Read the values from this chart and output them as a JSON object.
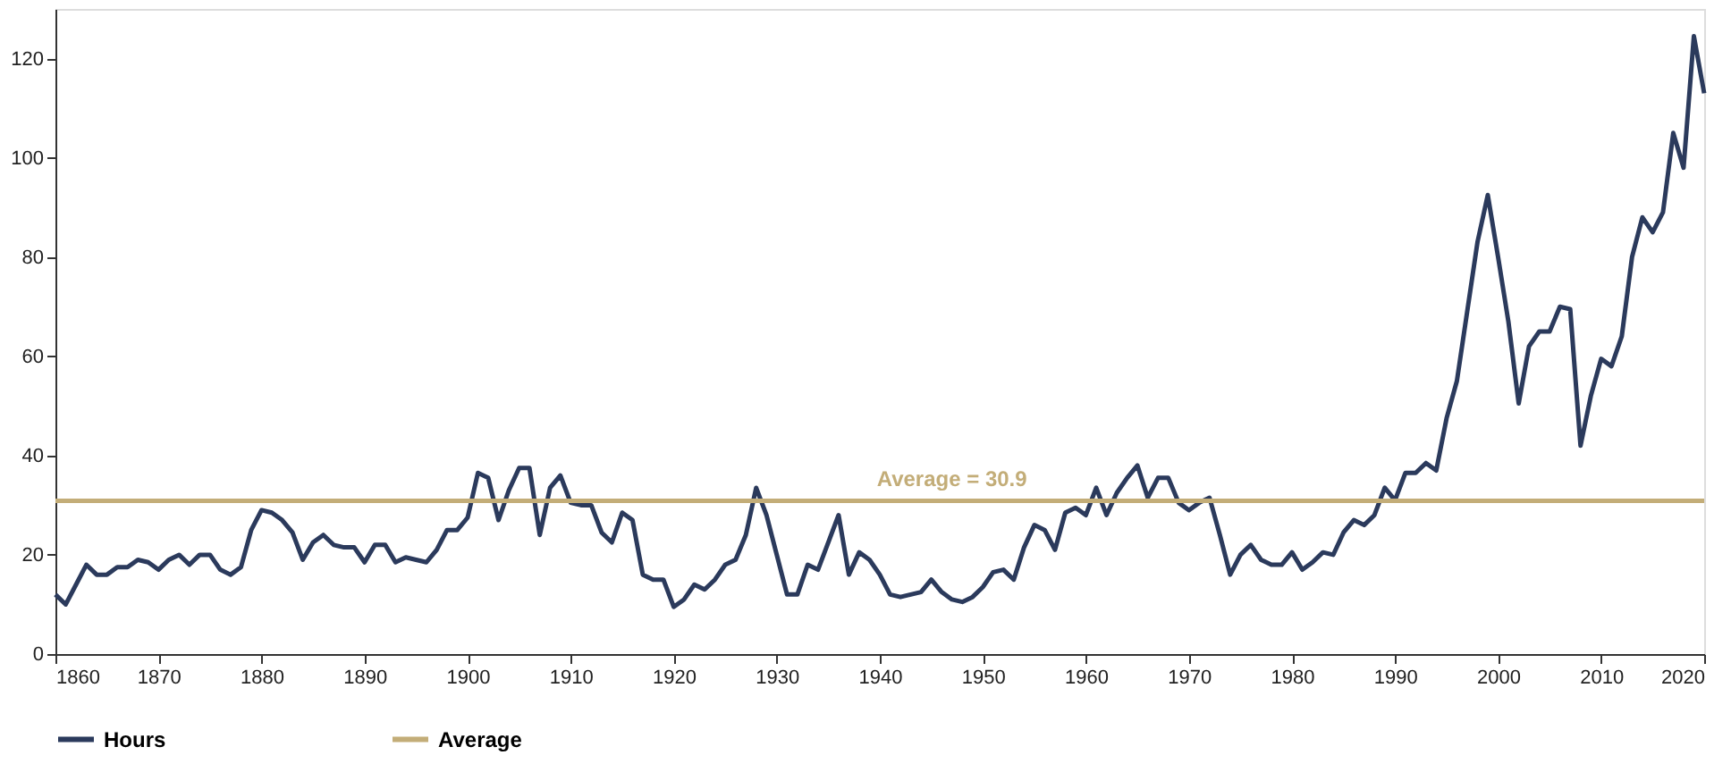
{
  "chart_data": {
    "type": "line",
    "xlim": [
      1860,
      2020
    ],
    "xticks": [
      1860,
      1870,
      1880,
      1890,
      1900,
      1910,
      1920,
      1930,
      1940,
      1950,
      1960,
      1970,
      1980,
      1990,
      2000,
      2010,
      2020
    ],
    "ylim": [
      0,
      130
    ],
    "yticks": [
      0,
      20,
      40,
      60,
      80,
      100,
      120
    ],
    "grid": false,
    "legend": "bottom",
    "line_style": "solid",
    "marker": "none",
    "x": [
      1860,
      1861,
      1862,
      1863,
      1864,
      1865,
      1866,
      1867,
      1868,
      1869,
      1870,
      1871,
      1872,
      1873,
      1874,
      1875,
      1876,
      1877,
      1878,
      1879,
      1880,
      1881,
      1882,
      1883,
      1884,
      1885,
      1886,
      1887,
      1888,
      1889,
      1890,
      1891,
      1892,
      1893,
      1894,
      1895,
      1896,
      1897,
      1898,
      1899,
      1900,
      1901,
      1902,
      1903,
      1904,
      1905,
      1906,
      1907,
      1908,
      1909,
      1910,
      1911,
      1912,
      1913,
      1914,
      1915,
      1916,
      1917,
      1918,
      1919,
      1920,
      1921,
      1922,
      1923,
      1924,
      1925,
      1926,
      1927,
      1928,
      1929,
      1930,
      1931,
      1932,
      1933,
      1934,
      1935,
      1936,
      1937,
      1938,
      1939,
      1940,
      1941,
      1942,
      1943,
      1944,
      1945,
      1946,
      1947,
      1948,
      1949,
      1950,
      1951,
      1952,
      1953,
      1954,
      1955,
      1956,
      1957,
      1958,
      1959,
      1960,
      1961,
      1962,
      1963,
      1964,
      1965,
      1966,
      1967,
      1968,
      1969,
      1970,
      1971,
      1972,
      1973,
      1974,
      1975,
      1976,
      1977,
      1978,
      1979,
      1980,
      1981,
      1982,
      1983,
      1984,
      1985,
      1986,
      1987,
      1988,
      1989,
      1990,
      1991,
      1992,
      1993,
      1994,
      1995,
      1996,
      1997,
      1998,
      1999,
      2000,
      2001,
      2002,
      2003,
      2004,
      2005,
      2006,
      2007,
      2008,
      2009,
      2010,
      2011,
      2012,
      2013,
      2014,
      2015,
      2016,
      2017,
      2018,
      2019,
      2020
    ],
    "series": [
      {
        "name": "Hours",
        "color": "#2b3a5c",
        "values": [
          12,
          10,
          14,
          18,
          16,
          16,
          17.5,
          17.5,
          19,
          18.5,
          17,
          19,
          20,
          18,
          20,
          20,
          17,
          16,
          17.5,
          25,
          29,
          28.5,
          27,
          24.5,
          19,
          22.5,
          24,
          22,
          21.5,
          21.5,
          18.5,
          22,
          22,
          18.5,
          19.5,
          19,
          18.5,
          21,
          25,
          25,
          27.5,
          36.5,
          35.5,
          27,
          33,
          37.5,
          37.5,
          24,
          33.5,
          36,
          30.5,
          30,
          30,
          24.5,
          22.5,
          28.5,
          27,
          16,
          15,
          15,
          9.5,
          11,
          14,
          13,
          15,
          18,
          19,
          24,
          33.5,
          28,
          20,
          12,
          12,
          18,
          17,
          22.5,
          28,
          16,
          20.5,
          19,
          16,
          12,
          11.5,
          12,
          12.5,
          15,
          12.5,
          11,
          10.5,
          11.5,
          13.5,
          16.5,
          17,
          15,
          21.5,
          26,
          25,
          21,
          28.5,
          29.5,
          28,
          33.5,
          28,
          32.5,
          35.5,
          38,
          31.5,
          35.5,
          35.5,
          30.5,
          29,
          30.5,
          31.5,
          24,
          16,
          20,
          22,
          19,
          18,
          18,
          20.5,
          17,
          18.5,
          20.5,
          20,
          24.5,
          27,
          26,
          28,
          33.5,
          31,
          36.5,
          36.5,
          38.5,
          37,
          47.5,
          55,
          69,
          83,
          92.5,
          80,
          67,
          50.5,
          62,
          65,
          65,
          70,
          69.5,
          42,
          52,
          59.5,
          58,
          64,
          80,
          88,
          85,
          89,
          105,
          98,
          124.5,
          113
        ]
      },
      {
        "name": "Average",
        "color": "#c3ad78",
        "x": [
          1860,
          2020
        ],
        "values": [
          30.9,
          30.9
        ]
      }
    ],
    "annotations": [
      {
        "text": "Average = 30.9",
        "x": 1947,
        "y": 30.9
      }
    ]
  }
}
